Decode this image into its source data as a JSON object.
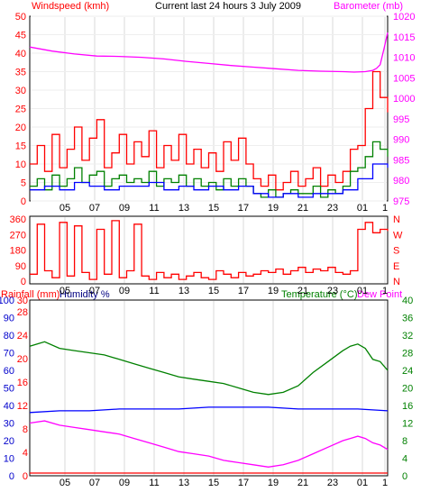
{
  "header": {
    "left_label": "Windspeed (kmh)",
    "title": "Current last 24 hours 3 July 2009",
    "right_label": "Barometer (mb)"
  },
  "x_ticks": [
    "05",
    "07",
    "09",
    "11",
    "13",
    "15",
    "17",
    "19",
    "21",
    "23",
    "01",
    "1"
  ],
  "colors": {
    "wind_gust": "#ff0000",
    "wind_avg": "#008000",
    "wind_other": "#0000ff",
    "barometer": "#ff00ff",
    "direction": "#ff0000",
    "rainfall": "#ff0000",
    "humidity": "#0000ff",
    "temperature": "#008000",
    "dewpoint": "#ff00ff"
  },
  "chart_data": [
    {
      "type": "line",
      "name": "wind-barometer",
      "left_axis": {
        "label": "Windspeed (kmh)",
        "ticks": [
          0,
          5,
          10,
          15,
          20,
          25,
          30,
          35,
          40,
          45,
          50
        ],
        "ylim": [
          0,
          50
        ]
      },
      "right_axis": {
        "label": "Barometer (mb)",
        "ticks": [
          975,
          980,
          985,
          990,
          995,
          1000,
          1005,
          1010,
          1015,
          1020
        ],
        "ylim": [
          975,
          1020
        ]
      },
      "x_ticks": [
        "05",
        "07",
        "09",
        "11",
        "13",
        "15",
        "17",
        "19",
        "21",
        "23",
        "01",
        "1"
      ],
      "barometer": {
        "x": [
          0,
          6,
          12,
          18,
          24,
          30,
          36,
          42,
          48,
          54,
          60,
          66,
          72,
          78,
          84,
          87,
          90,
          92,
          93,
          94,
          95,
          96
        ],
        "y": [
          1012.5,
          1011.5,
          1010.8,
          1010.3,
          1010.2,
          1010.0,
          1009.6,
          1009.0,
          1008.5,
          1008.0,
          1007.6,
          1007.2,
          1006.8,
          1006.6,
          1006.5,
          1006.4,
          1006.5,
          1006.8,
          1007.3,
          1008.2,
          1012.0,
          1016.0
        ]
      },
      "series": [
        {
          "name": "gust",
          "x": [
            0,
            2,
            4,
            6,
            8,
            10,
            12,
            14,
            16,
            18,
            20,
            22,
            24,
            26,
            28,
            30,
            32,
            34,
            36,
            38,
            40,
            42,
            44,
            46,
            48,
            50,
            52,
            54,
            56,
            58,
            60,
            62,
            64,
            66,
            68,
            70,
            72,
            74,
            76,
            78,
            80,
            82,
            84,
            86,
            88,
            90,
            92,
            94,
            96
          ],
          "y": [
            10,
            15,
            8,
            18,
            9,
            14,
            20,
            11,
            17,
            22,
            9,
            13,
            18,
            10,
            16,
            12,
            19,
            9,
            15,
            11,
            18,
            10,
            14,
            9,
            13,
            8,
            16,
            11,
            17,
            10,
            6,
            4,
            7,
            3,
            5,
            8,
            4,
            6,
            9,
            4,
            7,
            5,
            8,
            14,
            15,
            25,
            35,
            28,
            24
          ]
        },
        {
          "name": "average",
          "x": [
            0,
            2,
            4,
            6,
            8,
            10,
            12,
            14,
            16,
            18,
            20,
            22,
            24,
            26,
            28,
            30,
            32,
            34,
            36,
            38,
            40,
            42,
            44,
            46,
            48,
            50,
            52,
            54,
            56,
            58,
            60,
            62,
            64,
            66,
            68,
            70,
            72,
            74,
            76,
            78,
            80,
            82,
            84,
            86,
            88,
            90,
            92,
            94,
            96
          ],
          "y": [
            4,
            6,
            3,
            7,
            4,
            6,
            9,
            5,
            7,
            8,
            4,
            6,
            7,
            5,
            6,
            5,
            8,
            4,
            6,
            5,
            7,
            4,
            6,
            4,
            5,
            3,
            6,
            4,
            6,
            4,
            2,
            1,
            3,
            1,
            2,
            3,
            2,
            2,
            4,
            1,
            3,
            2,
            4,
            8,
            9,
            12,
            16,
            14,
            12
          ]
        },
        {
          "name": "other",
          "x": [
            0,
            4,
            8,
            12,
            16,
            20,
            24,
            28,
            32,
            36,
            40,
            44,
            48,
            52,
            56,
            60,
            64,
            68,
            72,
            76,
            80,
            84,
            88,
            92,
            96
          ],
          "y": [
            3,
            4,
            3,
            5,
            4,
            3,
            4,
            4,
            5,
            3,
            4,
            3,
            4,
            3,
            4,
            2,
            1,
            2,
            1,
            2,
            2,
            3,
            6,
            10,
            9
          ]
        }
      ]
    },
    {
      "type": "line",
      "name": "wind-direction",
      "left_axis": {
        "ticks": [
          0,
          90,
          180,
          270,
          360
        ],
        "ylim": [
          0,
          360
        ]
      },
      "right_axis": {
        "ticks": [
          "N",
          "W",
          "S",
          "E",
          "N"
        ]
      },
      "x_ticks": [
        "05",
        "07",
        "09",
        "11",
        "13",
        "15",
        "17",
        "19",
        "21",
        "23",
        "01",
        "1"
      ],
      "series": [
        {
          "name": "direction",
          "x": [
            0,
            2,
            4,
            6,
            8,
            10,
            12,
            14,
            16,
            18,
            20,
            22,
            24,
            26,
            28,
            30,
            32,
            34,
            36,
            38,
            40,
            42,
            44,
            46,
            48,
            50,
            52,
            54,
            56,
            58,
            60,
            62,
            64,
            66,
            68,
            70,
            72,
            74,
            76,
            78,
            80,
            82,
            84,
            86,
            88,
            90,
            92,
            94,
            96
          ],
          "y": [
            40,
            330,
            60,
            20,
            340,
            30,
            320,
            50,
            10,
            300,
            40,
            350,
            20,
            60,
            330,
            30,
            10,
            50,
            20,
            40,
            10,
            30,
            50,
            20,
            10,
            60,
            40,
            20,
            50,
            30,
            40,
            60,
            50,
            70,
            40,
            60,
            80,
            50,
            70,
            60,
            80,
            50,
            40,
            60,
            300,
            340,
            280,
            300,
            290
          ]
        }
      ]
    },
    {
      "type": "line",
      "name": "rain-humidity-temperature",
      "left_axis": {
        "label": "Rainfall (mm)  Humidity %",
        "ticks_rain": [
          0,
          4,
          8,
          12,
          16,
          20,
          24,
          28,
          30
        ],
        "ticks_humidity": [
          0,
          10,
          20,
          30,
          40,
          50,
          60,
          70,
          80,
          90,
          100
        ],
        "ylim": [
          0,
          100
        ]
      },
      "right_axis": {
        "label": "Temperature (°C)Dew Point",
        "ticks": [
          0,
          4,
          8,
          12,
          16,
          20,
          24,
          28,
          32,
          36,
          40
        ],
        "ylim": [
          0,
          40
        ]
      },
      "x_ticks": [
        "05",
        "07",
        "09",
        "11",
        "13",
        "15",
        "17",
        "19",
        "21",
        "23",
        "01",
        "1"
      ],
      "series": [
        {
          "name": "temperature",
          "x": [
            0,
            4,
            8,
            12,
            16,
            20,
            24,
            28,
            32,
            36,
            40,
            44,
            48,
            52,
            56,
            60,
            64,
            68,
            72,
            76,
            80,
            84,
            86,
            88,
            90,
            92,
            94,
            96
          ],
          "y": [
            29.5,
            30.5,
            29.0,
            28.5,
            28.0,
            27.5,
            26.5,
            25.5,
            24.5,
            23.5,
            22.5,
            22.0,
            21.5,
            21.0,
            20.0,
            19.0,
            18.5,
            19.0,
            20.5,
            23.5,
            26.0,
            28.5,
            29.5,
            30.0,
            29.0,
            26.5,
            26.0,
            24.0
          ]
        },
        {
          "name": "dew-point",
          "x": [
            0,
            4,
            8,
            12,
            16,
            20,
            24,
            28,
            32,
            36,
            40,
            44,
            48,
            52,
            56,
            60,
            64,
            68,
            72,
            76,
            80,
            84,
            86,
            88,
            90,
            92,
            94,
            96
          ],
          "y": [
            12.0,
            12.5,
            11.5,
            11.0,
            10.5,
            10.0,
            9.5,
            8.5,
            7.5,
            6.5,
            5.5,
            5.0,
            4.5,
            3.5,
            3.0,
            2.5,
            2.0,
            2.5,
            3.5,
            5.0,
            6.5,
            8.0,
            8.5,
            9.0,
            8.5,
            7.5,
            7.0,
            6.0
          ]
        },
        {
          "name": "humidity",
          "x": [
            0,
            8,
            16,
            24,
            32,
            40,
            48,
            56,
            64,
            72,
            80,
            88,
            96
          ],
          "y": [
            36,
            37,
            37,
            38,
            38,
            38,
            39,
            39,
            39,
            38,
            38,
            38,
            37
          ]
        },
        {
          "name": "rainfall",
          "x": [
            0,
            96
          ],
          "y": [
            0,
            0
          ]
        }
      ]
    }
  ]
}
